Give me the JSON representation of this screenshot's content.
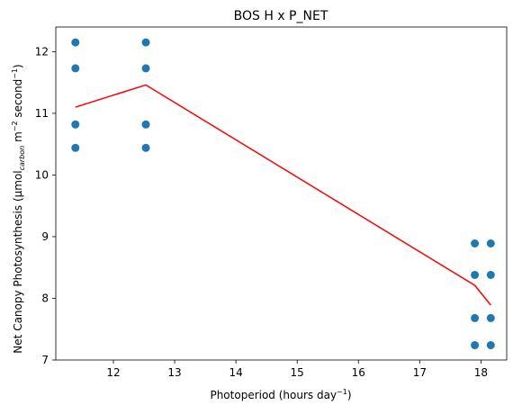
{
  "chart_data": {
    "type": "scatter",
    "title": "BOS H x P_NET",
    "xlabel": {
      "text": "Photoperiod (hours day",
      "sup": "−1",
      "close": ")"
    },
    "ylabel": {
      "prefix": "Net Canopy Photosynthesis (μmol",
      "sub": "carbon",
      "mid1": " m",
      "sup1": "−2",
      "mid2": " second",
      "sup2": "−1",
      "close": ")"
    },
    "xlim": [
      11.06,
      18.42
    ],
    "ylim": [
      7.0,
      12.4
    ],
    "xticks": [
      12,
      13,
      14,
      15,
      16,
      17,
      18
    ],
    "yticks": [
      7,
      8,
      9,
      10,
      11,
      12
    ],
    "grid": false,
    "series": [
      {
        "kind": "scatter",
        "color": "#1f77b4",
        "points": [
          [
            11.38,
            12.15
          ],
          [
            11.38,
            11.73
          ],
          [
            11.38,
            10.82
          ],
          [
            11.38,
            10.44
          ],
          [
            12.53,
            12.15
          ],
          [
            12.53,
            11.73
          ],
          [
            12.53,
            10.82
          ],
          [
            12.53,
            10.44
          ],
          [
            17.9,
            8.89
          ],
          [
            17.9,
            8.38
          ],
          [
            17.9,
            7.68
          ],
          [
            17.9,
            7.24
          ],
          [
            18.16,
            8.89
          ],
          [
            18.16,
            8.38
          ],
          [
            18.16,
            7.68
          ],
          [
            18.16,
            7.24
          ]
        ]
      },
      {
        "kind": "line",
        "color": "#ff0000",
        "x": [
          11.38,
          12.53,
          17.9,
          18.16
        ],
        "y": [
          11.1,
          11.46,
          8.21,
          7.89
        ]
      }
    ]
  }
}
